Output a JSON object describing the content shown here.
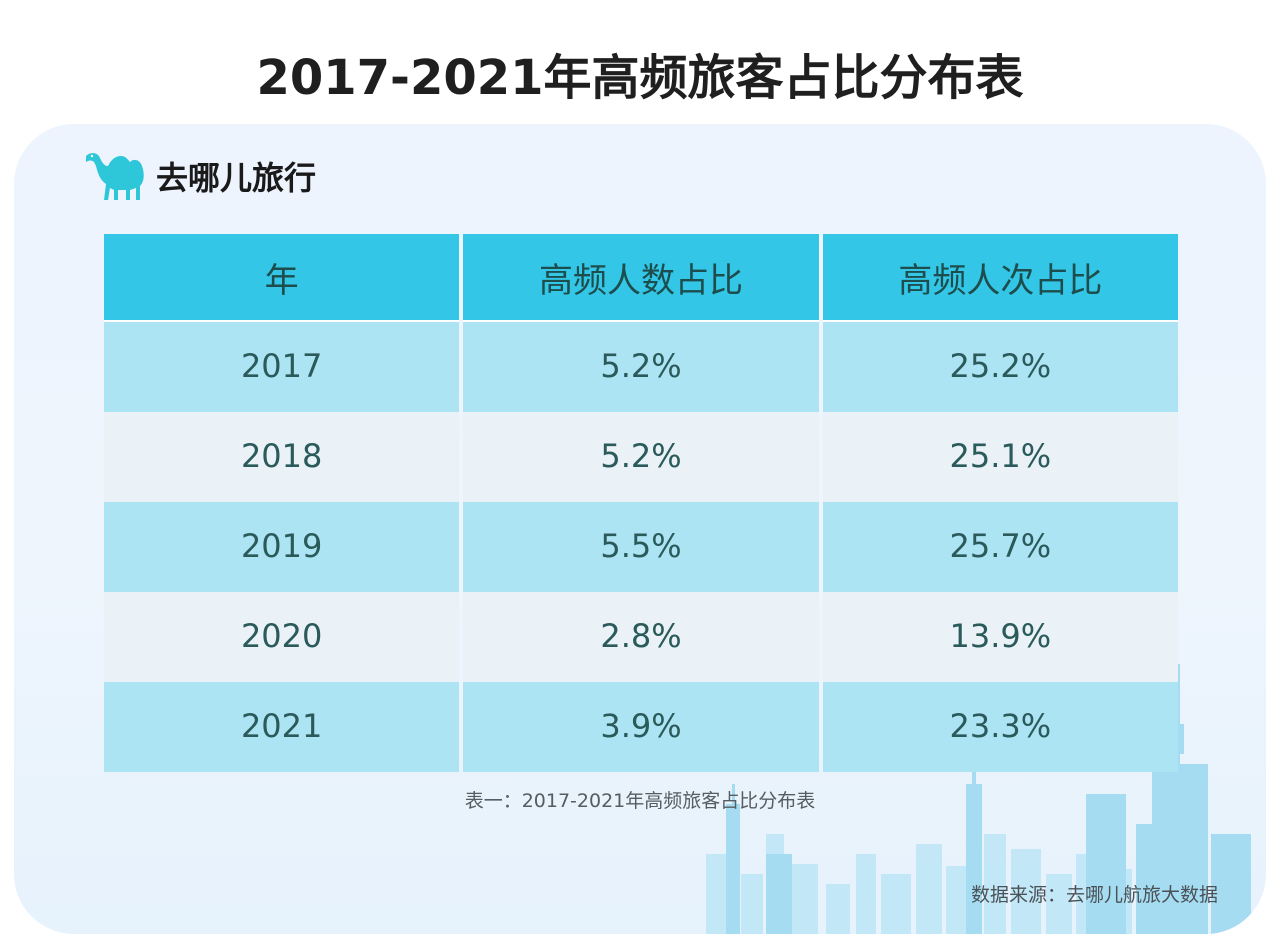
{
  "title": "2017-2021年高频旅客占比分布表",
  "brand": {
    "name": "去哪儿旅行",
    "logo_icon": "camel-icon"
  },
  "colors": {
    "header_bg": "#33c6e6",
    "row_odd_bg": "#ade4f4",
    "row_even_bg": "#eaf1f7",
    "brand_accent": "#2ec7d9"
  },
  "chart_data": {
    "type": "table",
    "title": "2017-2021年高频旅客占比分布表",
    "columns": [
      "年",
      "高频人数占比",
      "高频人次占比"
    ],
    "rows": [
      [
        "2017",
        "5.2%",
        "25.2%"
      ],
      [
        "2018",
        "5.2%",
        "25.1%"
      ],
      [
        "2019",
        "5.5%",
        "25.7%"
      ],
      [
        "2020",
        "2.8%",
        "13.9%"
      ],
      [
        "2021",
        "3.9%",
        "23.3%"
      ]
    ]
  },
  "caption": "表一：2017-2021年高频旅客占比分布表",
  "source": "数据来源：去哪儿航旅大数据"
}
